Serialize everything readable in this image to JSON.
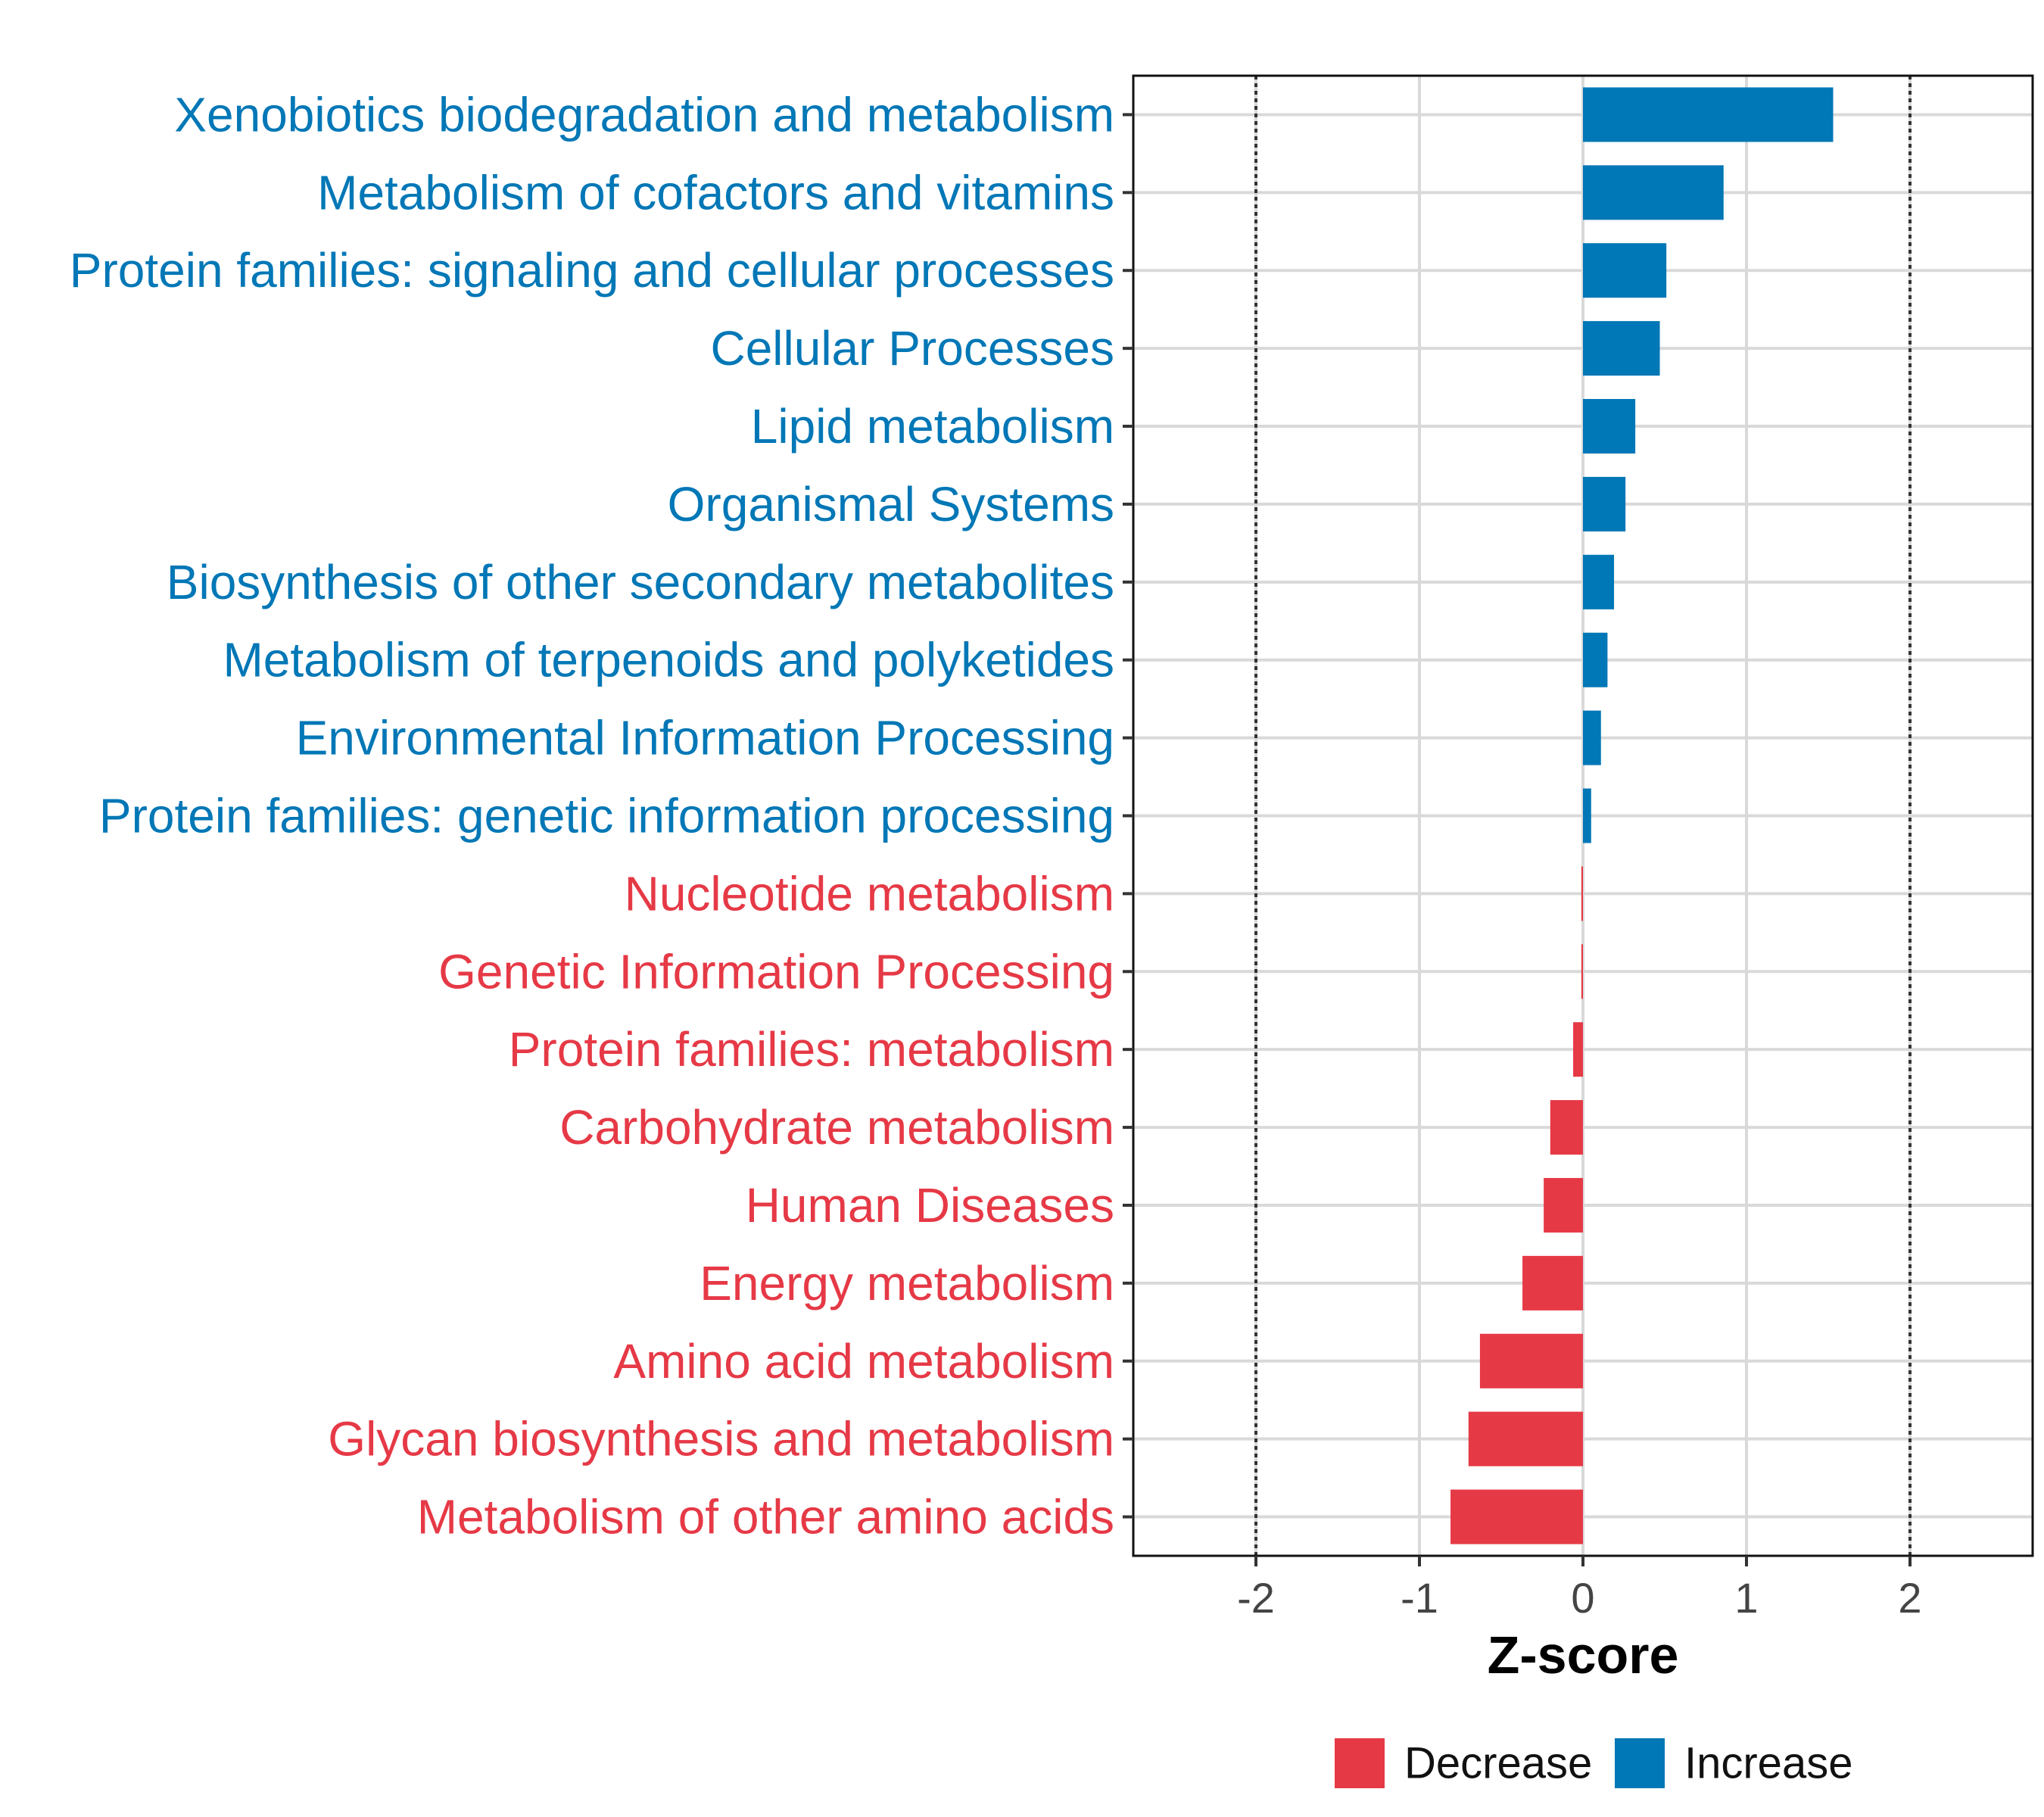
{
  "chart_data": {
    "type": "bar",
    "orientation": "horizontal",
    "title": "",
    "xlabel": "Z-score",
    "ylabel": "",
    "xlim": [
      -2.75,
      2.75
    ],
    "xticks": [
      -2,
      -1,
      0,
      1,
      2
    ],
    "xtick_labels": [
      "-2",
      "-1",
      "0",
      "1",
      "2"
    ],
    "reference_lines": [
      -2,
      2
    ],
    "grid": true,
    "colors": {
      "Decrease": "#E63946",
      "Increase": "#0077B6"
    },
    "categories": [
      "Xenobiotics biodegradation and metabolism",
      "Metabolism of cofactors and vitamins",
      "Protein families: signaling and cellular processes",
      "Cellular Processes",
      "Lipid metabolism",
      "Organismal Systems",
      "Biosynthesis of other secondary metabolites",
      "Metabolism of terpenoids and polyketides",
      "Environmental Information Processing",
      "Protein families: genetic information processing",
      "Nucleotide metabolism",
      "Genetic Information Processing",
      "Protein families: metabolism",
      "Carbohydrate metabolism",
      "Human Diseases",
      "Energy metabolism",
      "Amino acid metabolism",
      "Glycan biosynthesis and metabolism",
      "Metabolism of other amino acids"
    ],
    "values": [
      1.53,
      0.86,
      0.51,
      0.47,
      0.32,
      0.26,
      0.19,
      0.15,
      0.11,
      0.05,
      -0.01,
      -0.01,
      -0.06,
      -0.2,
      -0.24,
      -0.37,
      -0.63,
      -0.7,
      -0.81
    ],
    "groups": [
      "Increase",
      "Increase",
      "Increase",
      "Increase",
      "Increase",
      "Increase",
      "Increase",
      "Increase",
      "Increase",
      "Increase",
      "Decrease",
      "Decrease",
      "Decrease",
      "Decrease",
      "Decrease",
      "Decrease",
      "Decrease",
      "Decrease",
      "Decrease"
    ],
    "legend": {
      "position": "bottom",
      "entries": [
        "Decrease",
        "Increase"
      ]
    }
  }
}
